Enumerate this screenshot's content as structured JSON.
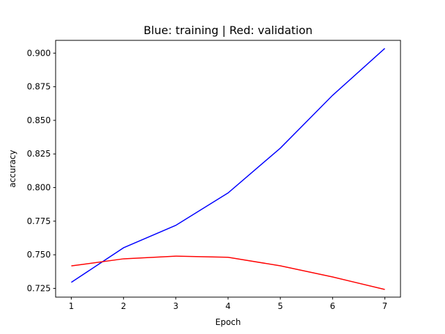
{
  "chart_data": {
    "type": "line",
    "title": "Blue: training | Red: validation",
    "xlabel": "Epoch",
    "ylabel": "accuracy",
    "x": [
      1,
      2,
      3,
      4,
      5,
      6,
      7
    ],
    "xlim": [
      0.7,
      7.3
    ],
    "ylim": [
      0.7185,
      0.9095
    ],
    "xticks": [
      1,
      2,
      3,
      4,
      5,
      6,
      7
    ],
    "yticks": [
      0.725,
      0.75,
      0.775,
      0.8,
      0.825,
      0.85,
      0.875,
      0.9
    ],
    "ytick_labels": [
      "0.725",
      "0.750",
      "0.775",
      "0.800",
      "0.825",
      "0.850",
      "0.875",
      "0.900"
    ],
    "grid": false,
    "series": [
      {
        "color": "#0000ff",
        "values": [
          0.7295,
          0.7552,
          0.7719,
          0.796,
          0.8293,
          0.8686,
          0.9035
        ]
      },
      {
        "color": "#ff0000",
        "values": [
          0.7417,
          0.747,
          0.749,
          0.7481,
          0.7418,
          0.7335,
          0.7242
        ]
      }
    ]
  }
}
